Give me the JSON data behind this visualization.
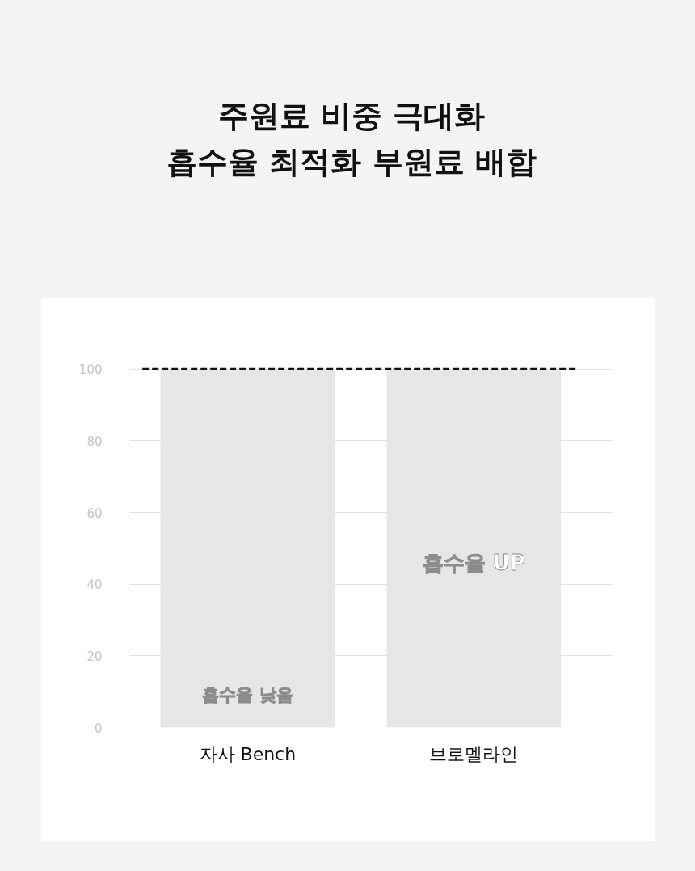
{
  "chart_data": {
    "type": "bar",
    "title": "주원료 비중 극대화\n흡수율 최적화 부원료 배합",
    "categories": [
      "자사 Bench",
      "브로멜라인"
    ],
    "values": [
      100,
      100
    ],
    "color": "#e6e6e6",
    "ylim": [
      0,
      102
    ],
    "yticks": [
      0,
      20,
      40,
      60,
      80,
      100
    ],
    "grid": "y",
    "ref_lines": [
      {
        "axis": "y",
        "value": 100,
        "color": "#111111",
        "line_style": "dashed"
      }
    ],
    "annotations": [
      "흡수율 낮음",
      "흡수율 UP"
    ]
  }
}
